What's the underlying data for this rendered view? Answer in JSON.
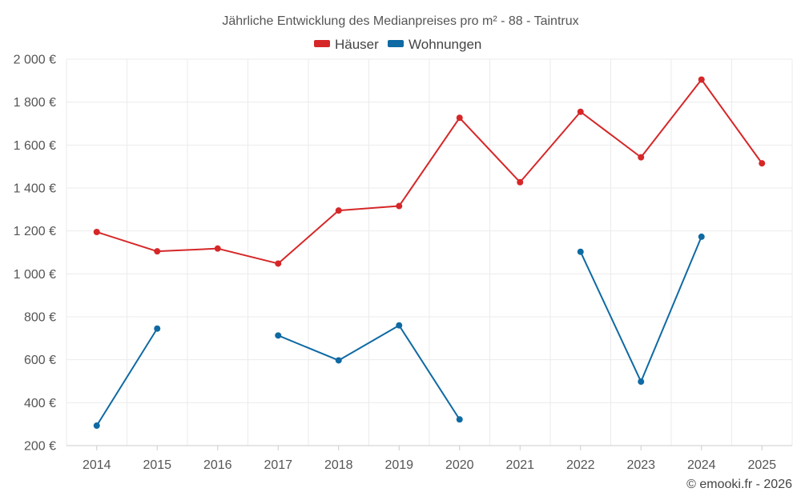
{
  "chart_data": {
    "type": "line",
    "title": "Jährliche Entwicklung des Medianpreises pro m² - 88 - Taintrux",
    "xlabel": "",
    "ylabel": "",
    "categories": [
      "2014",
      "2015",
      "2016",
      "2017",
      "2018",
      "2019",
      "2020",
      "2021",
      "2022",
      "2023",
      "2024",
      "2025"
    ],
    "ylim": [
      200,
      2000
    ],
    "yticks": [
      200,
      400,
      600,
      800,
      1000,
      1200,
      1400,
      1600,
      1800,
      2000
    ],
    "ytick_labels": [
      "200 €",
      "400 €",
      "600 €",
      "800 €",
      "1 000 €",
      "1 200 €",
      "1 400 €",
      "1 600 €",
      "1 800 €",
      "2 000 €"
    ],
    "grid": true,
    "legend_position": "top-center",
    "series": [
      {
        "name": "Häuser",
        "color": "#d62728",
        "values": [
          1195,
          1105,
          1118,
          1048,
          1295,
          1316,
          1727,
          1427,
          1755,
          1543,
          1905,
          1515
        ]
      },
      {
        "name": "Wohnungen",
        "color": "#0f6aa3",
        "values": [
          293,
          745,
          null,
          713,
          597,
          760,
          322,
          null,
          1103,
          498,
          1173,
          null
        ]
      }
    ],
    "credit": "© emooki.fr - 2026"
  }
}
